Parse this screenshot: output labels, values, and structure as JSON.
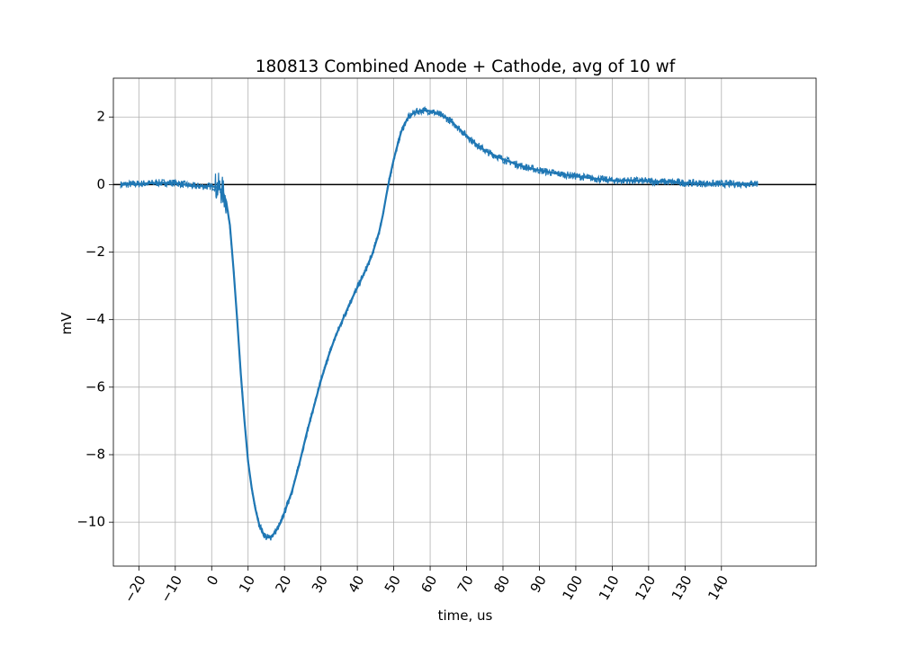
{
  "chart_data": {
    "type": "line",
    "title": "180813 Combined Anode + Cathode, avg of 10 wf",
    "xlabel": "time, us",
    "ylabel": "mV",
    "xlim": [
      -27,
      166
    ],
    "ylim": [
      -11.3,
      3.15
    ],
    "x_ticks": [
      -20,
      -10,
      0,
      10,
      20,
      30,
      40,
      50,
      60,
      70,
      80,
      90,
      100,
      110,
      120,
      130,
      140
    ],
    "x_tick_labels": [
      "−20",
      "−10",
      "0",
      "10",
      "20",
      "30",
      "40",
      "50",
      "60",
      "70",
      "80",
      "90",
      "100",
      "110",
      "120",
      "130",
      "140"
    ],
    "y_ticks": [
      -10,
      -8,
      -6,
      -4,
      -2,
      0,
      2
    ],
    "y_tick_labels": [
      "−10",
      "−8",
      "−6",
      "−4",
      "−2",
      "0",
      "2"
    ],
    "grid": true,
    "reference_line_y": 0,
    "series": [
      {
        "name": "Combined Anode + Cathode",
        "color": "#1f77b4",
        "x": [
          -25,
          -20,
          -15,
          -10,
          -5,
          0,
          2,
          3,
          4,
          5,
          6,
          7,
          8,
          9,
          10,
          11,
          12,
          13,
          14,
          15,
          16,
          17,
          18,
          19,
          20,
          22,
          24,
          26,
          28,
          30,
          32,
          34,
          36,
          38,
          40,
          42,
          44,
          46,
          47,
          48,
          49,
          50,
          51,
          52,
          53,
          54,
          55,
          56,
          58,
          60,
          62,
          64,
          66,
          68,
          70,
          72,
          74,
          76,
          78,
          80,
          85,
          90,
          95,
          100,
          105,
          110,
          115,
          120,
          125,
          130,
          135,
          140,
          145,
          150
        ],
        "y": [
          0.0,
          0.02,
          0.05,
          0.05,
          -0.05,
          -0.05,
          -0.1,
          -0.2,
          -0.5,
          -1.2,
          -2.5,
          -4.0,
          -5.6,
          -7.0,
          -8.2,
          -9.0,
          -9.6,
          -10.05,
          -10.3,
          -10.45,
          -10.45,
          -10.35,
          -10.2,
          -10.0,
          -9.7,
          -9.1,
          -8.3,
          -7.4,
          -6.6,
          -5.8,
          -5.1,
          -4.5,
          -4.0,
          -3.5,
          -3.05,
          -2.6,
          -2.1,
          -1.4,
          -0.9,
          -0.3,
          0.25,
          0.75,
          1.15,
          1.55,
          1.8,
          1.98,
          2.08,
          2.15,
          2.2,
          2.18,
          2.1,
          2.0,
          1.85,
          1.65,
          1.45,
          1.25,
          1.08,
          0.95,
          0.85,
          0.75,
          0.55,
          0.42,
          0.32,
          0.25,
          0.18,
          0.12,
          0.12,
          0.1,
          0.08,
          0.05,
          0.03,
          0.02,
          0.02,
          0.03
        ]
      }
    ]
  }
}
